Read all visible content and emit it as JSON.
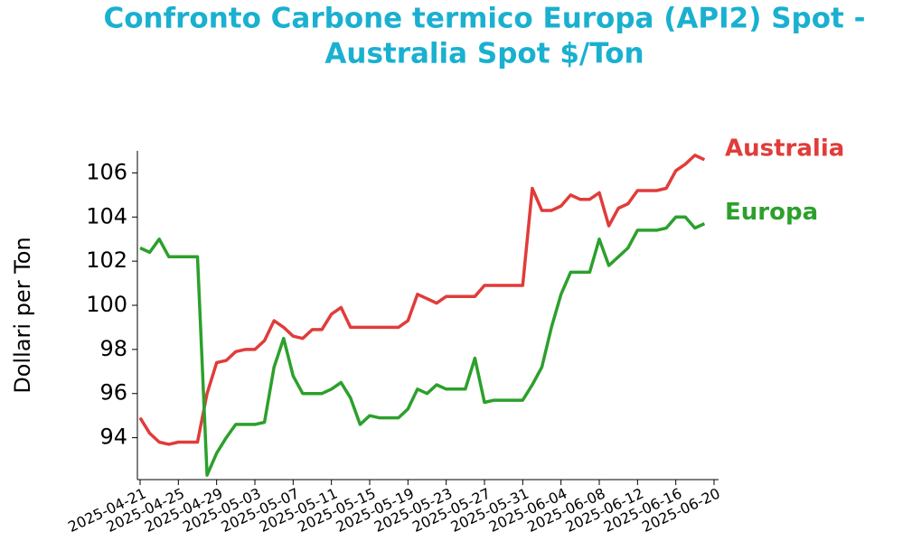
{
  "chart_data": {
    "type": "line",
    "title": "Confronto Carbone termico Europa (API2) Spot -",
    "subtitle": "Australia Spot $/Ton",
    "y_label": "Dollari per Ton",
    "x": [
      "2025-04-21",
      "2025-04-22",
      "2025-04-23",
      "2025-04-24",
      "2025-04-25",
      "2025-04-26",
      "2025-04-27",
      "2025-04-28",
      "2025-04-29",
      "2025-04-30",
      "2025-05-01",
      "2025-05-02",
      "2025-05-03",
      "2025-05-04",
      "2025-05-05",
      "2025-05-06",
      "2025-05-07",
      "2025-05-08",
      "2025-05-09",
      "2025-05-10",
      "2025-05-11",
      "2025-05-12",
      "2025-05-13",
      "2025-05-14",
      "2025-05-15",
      "2025-05-16",
      "2025-05-17",
      "2025-05-18",
      "2025-05-19",
      "2025-05-20",
      "2025-05-21",
      "2025-05-22",
      "2025-05-23",
      "2025-05-24",
      "2025-05-25",
      "2025-05-26",
      "2025-05-27",
      "2025-05-28",
      "2025-05-29",
      "2025-05-30",
      "2025-05-31",
      "2025-06-01",
      "2025-06-02",
      "2025-06-03",
      "2025-06-04",
      "2025-06-05",
      "2025-06-06",
      "2025-06-07",
      "2025-06-08",
      "2025-06-09",
      "2025-06-10",
      "2025-06-11",
      "2025-06-12",
      "2025-06-13",
      "2025-06-14",
      "2025-06-15",
      "2025-06-16",
      "2025-06-17",
      "2025-06-18",
      "2025-06-19"
    ],
    "series": [
      {
        "name": "Australia",
        "color": "#e03c3a",
        "values": [
          94.9,
          94.2,
          93.8,
          93.7,
          93.8,
          93.8,
          93.8,
          96.0,
          97.4,
          97.5,
          97.9,
          98.0,
          98.0,
          98.4,
          99.3,
          99.0,
          98.6,
          98.5,
          98.9,
          98.9,
          99.6,
          99.9,
          99.0,
          99.0,
          99.0,
          99.0,
          99.0,
          99.0,
          99.3,
          100.5,
          100.3,
          100.1,
          100.4,
          100.4,
          100.4,
          100.4,
          100.9,
          100.9,
          100.9,
          100.9,
          100.9,
          105.3,
          104.3,
          104.3,
          104.5,
          105.0,
          104.8,
          104.8,
          105.1,
          103.6,
          104.4,
          104.6,
          105.2,
          105.2,
          105.2,
          105.3,
          106.1,
          106.4,
          106.8,
          106.6
        ]
      },
      {
        "name": "Europa",
        "color": "#2ca02c",
        "values": [
          102.6,
          102.4,
          103.0,
          102.2,
          102.2,
          102.2,
          102.2,
          92.3,
          93.3,
          94.0,
          94.6,
          94.6,
          94.6,
          94.7,
          97.2,
          98.5,
          96.8,
          96.0,
          96.0,
          96.0,
          96.2,
          96.5,
          95.8,
          94.6,
          95.0,
          94.9,
          94.9,
          94.9,
          95.3,
          96.2,
          96.0,
          96.4,
          96.2,
          96.2,
          96.2,
          97.6,
          95.6,
          95.7,
          95.7,
          95.7,
          95.7,
          96.4,
          97.2,
          99.0,
          100.5,
          101.5,
          101.5,
          101.5,
          103.0,
          101.8,
          102.2,
          102.6,
          103.4,
          103.4,
          103.4,
          103.5,
          104.0,
          104.0,
          103.5,
          103.7
        ]
      }
    ],
    "xlim": [
      "2025-04-21",
      "2025-06-20"
    ],
    "xticks": [
      "2025-04-21",
      "2025-04-25",
      "2025-04-29",
      "2025-05-03",
      "2025-05-07",
      "2025-05-11",
      "2025-05-15",
      "2025-05-19",
      "2025-05-23",
      "2025-05-27",
      "2025-05-31",
      "2025-06-04",
      "2025-06-08",
      "2025-06-12",
      "2025-06-16",
      "2025-06-20"
    ],
    "ylim": [
      92.1,
      107.0
    ],
    "yticks": [
      94,
      96,
      98,
      100,
      102,
      104,
      106
    ],
    "title_color": "#1ab0d0"
  }
}
